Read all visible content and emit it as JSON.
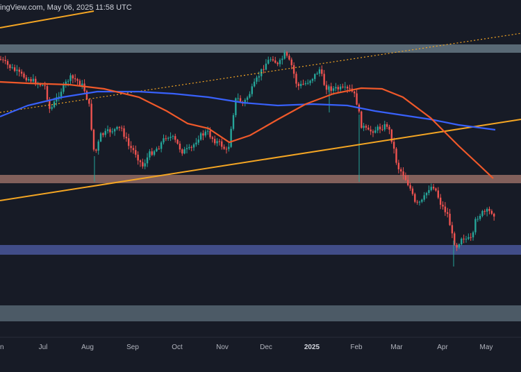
{
  "header": {
    "text": "ingView.com, May 06, 2025 11:58 UTC"
  },
  "colors": {
    "background": "#171b26",
    "up_candle": "#26a69a",
    "down_candle": "#ef5350",
    "sma200": "#3861fb",
    "sma100": "#f0592a",
    "trendline": "#f5a623",
    "resistance_zone": "#8fa9b6",
    "support_zone_mid": "#c98f7e",
    "support_zone_low": "#5d6fc9",
    "support_zone_bottom": "#8fa9b6"
  },
  "chart_data": {
    "type": "candlestick",
    "title": "",
    "x_labels": [
      "n",
      "Jul",
      "Aug",
      "Sep",
      "Oct",
      "Nov",
      "Dec",
      "2025",
      "Feb",
      "Mar",
      "Apr",
      "May"
    ],
    "x_label_bold": "2025",
    "x_label_dates": [
      "2024-06-01",
      "2024-07-01",
      "2024-08-01",
      "2024-09-01",
      "2024-10-01",
      "2024-11-01",
      "2024-12-01",
      "2025-01-01",
      "2025-02-01",
      "2025-03-01",
      "2025-04-01",
      "2025-05-01"
    ],
    "grid": false,
    "legend": "none",
    "zones": [
      {
        "name": "upper-resistance",
        "color": "#8fa9b6"
      },
      {
        "name": "mid-resistance",
        "color": "#c98f7e"
      },
      {
        "name": "support",
        "color": "#5d6fc9"
      },
      {
        "name": "lower-support",
        "color": "#8fa9b6"
      }
    ],
    "indicators": [
      {
        "name": "sma-200",
        "color": "#3861fb"
      },
      {
        "name": "sma-100",
        "color": "#f0592a"
      },
      {
        "name": "ascending-trendline",
        "color": "#f5a623"
      },
      {
        "name": "dotted-trendline",
        "color": "#f5a623"
      }
    ]
  }
}
